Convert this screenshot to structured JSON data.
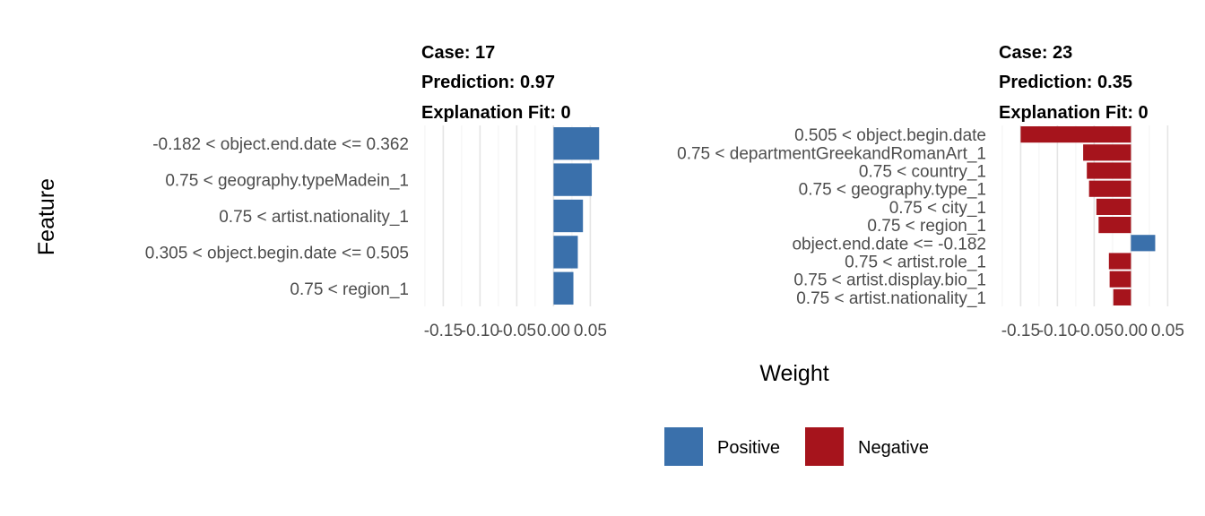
{
  "chart_data": {
    "type": "bar",
    "xlabel": "Weight",
    "ylabel": "Feature",
    "legend": {
      "placement": "bottom",
      "entries": [
        {
          "name": "Positive",
          "color": "#3a70ab"
        },
        {
          "name": "Negative",
          "color": "#a6141c"
        }
      ]
    },
    "xlim": [
      -0.15,
      0.05
    ],
    "xticks": [
      "-0.15",
      "-0.10",
      "-0.05",
      "0.00",
      "0.05"
    ],
    "xtick_values": [
      -0.15,
      -0.1,
      -0.05,
      0.0,
      0.05
    ],
    "panels": [
      {
        "title_lines": [
          "Case: 17",
          "Prediction: 0.97",
          "Explanation Fit: 0"
        ],
        "features": [
          "-0.182 < object.end.date <= 0.362",
          "0.75 < geography.typeMadein_1",
          "0.75 < artist.nationality_1",
          "0.305 < object.begin.date <= 0.505",
          "0.75 < region_1"
        ],
        "values": [
          0.062,
          0.052,
          0.04,
          0.033,
          0.027
        ],
        "signs": [
          "Positive",
          "Positive",
          "Positive",
          "Positive",
          "Positive"
        ]
      },
      {
        "title_lines": [
          "Case: 23",
          "Prediction: 0.35",
          "Explanation Fit: 0"
        ],
        "features": [
          "0.505 < object.begin.date",
          "0.75 < departmentGreekandRomanArt_1",
          "0.75 < country_1",
          "0.75 < geography.type_1",
          "0.75 < city_1",
          "0.75 < region_1",
          "object.end.date <= -0.182",
          "0.75 < artist.role_1",
          "0.75 < artist.display.bio_1",
          "0.75 < artist.nationality_1"
        ],
        "values": [
          -0.15,
          -0.065,
          -0.06,
          -0.057,
          -0.047,
          -0.044,
          0.033,
          -0.03,
          -0.029,
          -0.024
        ],
        "signs": [
          "Negative",
          "Negative",
          "Negative",
          "Negative",
          "Negative",
          "Negative",
          "Positive",
          "Negative",
          "Negative",
          "Negative"
        ]
      }
    ]
  }
}
